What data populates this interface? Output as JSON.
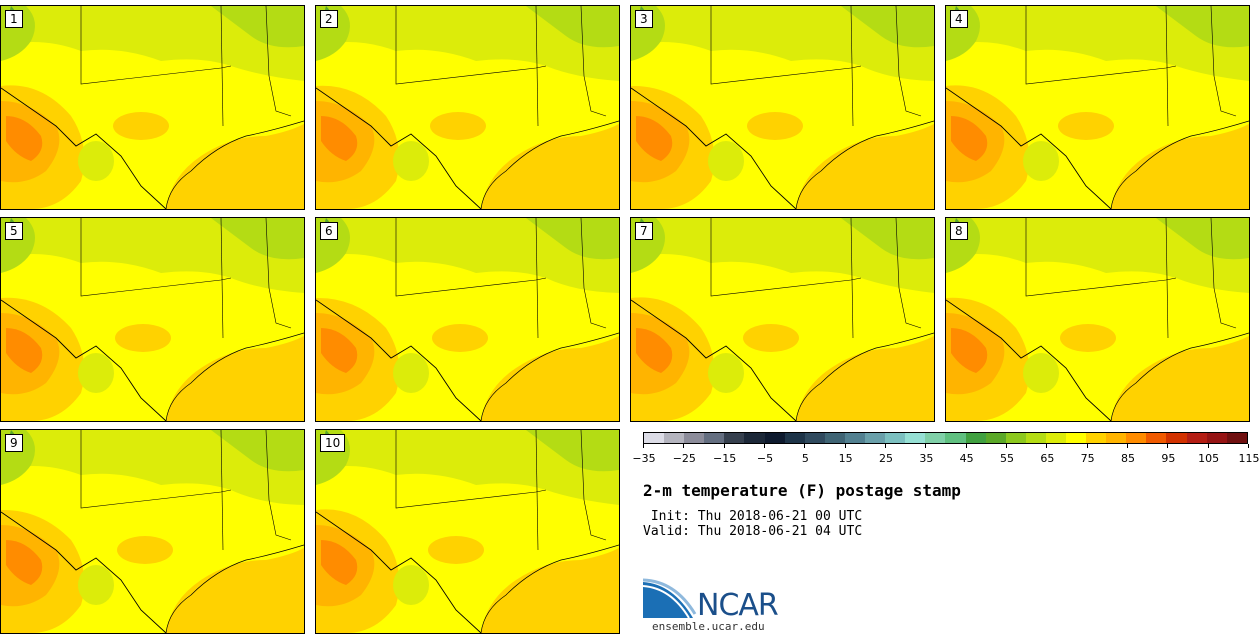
{
  "title": "2-m temperature (F) postage stamp",
  "init_line": " Init: Thu 2018-06-21 00 UTC",
  "valid_line": "Valid: Thu 2018-06-21 04 UTC",
  "logo": {
    "text": "NCAR",
    "url": "ensemble.ucar.edu"
  },
  "members": [
    "1",
    "2",
    "3",
    "4",
    "5",
    "6",
    "7",
    "8",
    "9",
    "10"
  ],
  "colorbar": {
    "colors": [
      "#dcdce6",
      "#b4b4be",
      "#8c8c9a",
      "#646e80",
      "#36404e",
      "#1c2838",
      "#0e1a2e",
      "#1e3448",
      "#304a5e",
      "#3f6474",
      "#528090",
      "#6aa0aa",
      "#7cc0c0",
      "#96e0d4",
      "#80d0a8",
      "#60c080",
      "#40a040",
      "#5aa828",
      "#8cc81e",
      "#b4dc14",
      "#dcec0a",
      "#ffff00",
      "#ffd200",
      "#ffb400",
      "#ff8c00",
      "#f05a00",
      "#d23200",
      "#b41e14",
      "#961414",
      "#701010"
    ],
    "tick_labels": [
      "−35",
      "−25",
      "−15",
      "−5",
      "5",
      "15",
      "25",
      "35",
      "45",
      "55",
      "65",
      "75",
      "85",
      "95",
      "105",
      "115"
    ]
  },
  "palette": {
    "field_base": "#ffff00",
    "warm": "#ffd200",
    "hot": "#ffb400",
    "hotter": "#ff8c00",
    "cool": "#dcec0a",
    "cooler": "#b4dc14",
    "coolest": "#5aa828",
    "gulf": "#ffd200"
  }
}
